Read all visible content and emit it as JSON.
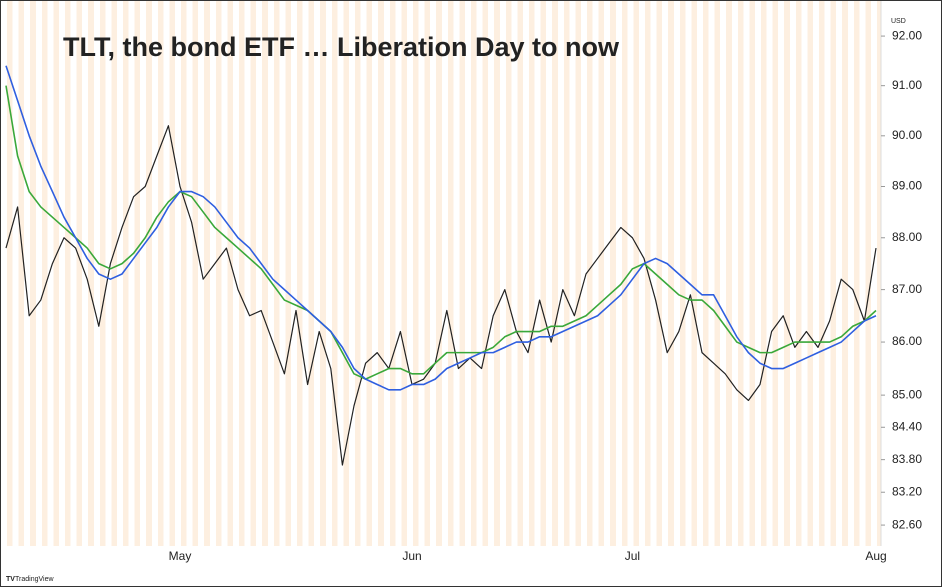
{
  "chart_data": {
    "type": "line",
    "title": "TLT, the bond ETF … Liberation Day to now",
    "currency": "USD",
    "watermark": "TradingView",
    "log_scale": true,
    "grid": false,
    "ylim": [
      82.22,
      92.51
    ],
    "yticks": [
      {
        "value": 92,
        "label": "92.00"
      },
      {
        "value": 91,
        "label": "91.00"
      },
      {
        "value": 90,
        "label": "90.00"
      },
      {
        "value": 89,
        "label": "89.00"
      },
      {
        "value": 88,
        "label": "88.00"
      },
      {
        "value": 87,
        "label": "87.00"
      },
      {
        "value": 86,
        "label": "86.00"
      },
      {
        "value": 85,
        "label": "85.00"
      },
      {
        "value": 84.4,
        "label": "84.40"
      },
      {
        "value": 83.8,
        "label": "83.80"
      },
      {
        "value": 83.2,
        "label": "83.20"
      },
      {
        "value": 82.6,
        "label": "82.60"
      }
    ],
    "categories": [
      null,
      null,
      null,
      null,
      null,
      null,
      null,
      null,
      null,
      null,
      null,
      null,
      null,
      null,
      null,
      "May",
      null,
      null,
      null,
      null,
      null,
      null,
      null,
      null,
      null,
      null,
      null,
      null,
      null,
      null,
      null,
      null,
      null,
      null,
      null,
      "Jun",
      null,
      null,
      null,
      null,
      null,
      null,
      null,
      null,
      null,
      null,
      null,
      null,
      null,
      null,
      null,
      null,
      null,
      null,
      "Jul",
      null,
      null,
      null,
      null,
      null,
      null,
      null,
      null,
      null,
      null,
      null,
      null,
      null,
      null,
      null,
      null,
      null,
      null,
      null,
      null,
      "Aug"
    ],
    "series": [
      {
        "color": "#222222",
        "values": [
          87.8,
          88.6,
          86.5,
          86.8,
          87.5,
          88.0,
          87.8,
          87.2,
          86.3,
          87.5,
          88.2,
          88.8,
          89.0,
          89.6,
          90.2,
          89.0,
          88.3,
          87.2,
          87.5,
          87.8,
          87.0,
          86.5,
          86.6,
          86.0,
          85.4,
          86.6,
          85.2,
          86.2,
          85.5,
          83.7,
          84.8,
          85.6,
          85.8,
          85.5,
          86.2,
          85.2,
          85.3,
          85.6,
          86.6,
          85.5,
          85.7,
          85.5,
          86.5,
          87.0,
          86.2,
          85.8,
          86.8,
          86.0,
          87.0,
          86.5,
          87.3,
          87.6,
          87.9,
          88.2,
          88.0,
          87.6,
          86.8,
          85.8,
          86.2,
          86.9,
          85.8,
          85.6,
          85.4,
          85.1,
          84.9,
          85.2,
          86.2,
          86.5,
          85.9,
          86.2,
          85.9,
          86.4,
          87.2,
          87.0,
          86.4,
          87.8
        ]
      },
      {
        "color": "#3aa83a",
        "values": [
          91.0,
          89.6,
          88.9,
          88.6,
          88.4,
          88.2,
          88.0,
          87.8,
          87.5,
          87.4,
          87.5,
          87.7,
          88.0,
          88.4,
          88.7,
          88.9,
          88.8,
          88.5,
          88.2,
          88.0,
          87.8,
          87.6,
          87.4,
          87.1,
          86.8,
          86.7,
          86.6,
          86.4,
          86.2,
          85.8,
          85.4,
          85.3,
          85.4,
          85.5,
          85.5,
          85.4,
          85.4,
          85.6,
          85.8,
          85.8,
          85.8,
          85.8,
          85.9,
          86.1,
          86.2,
          86.2,
          86.2,
          86.3,
          86.3,
          86.4,
          86.5,
          86.7,
          86.9,
          87.1,
          87.4,
          87.5,
          87.3,
          87.1,
          86.9,
          86.8,
          86.8,
          86.6,
          86.3,
          86.0,
          85.9,
          85.8,
          85.8,
          85.9,
          86.0,
          86.0,
          86.0,
          86.0,
          86.1,
          86.3,
          86.4,
          86.6
        ]
      },
      {
        "color": "#2f5fe0",
        "values": [
          91.4,
          90.7,
          90.0,
          89.4,
          88.9,
          88.4,
          88.0,
          87.6,
          87.3,
          87.2,
          87.3,
          87.6,
          87.9,
          88.2,
          88.6,
          88.9,
          88.9,
          88.8,
          88.6,
          88.3,
          88.0,
          87.8,
          87.5,
          87.2,
          87.0,
          86.8,
          86.6,
          86.4,
          86.2,
          85.9,
          85.5,
          85.3,
          85.2,
          85.1,
          85.1,
          85.2,
          85.2,
          85.3,
          85.5,
          85.6,
          85.7,
          85.8,
          85.8,
          85.9,
          86.0,
          86.0,
          86.1,
          86.1,
          86.2,
          86.3,
          86.4,
          86.5,
          86.7,
          86.9,
          87.2,
          87.5,
          87.6,
          87.5,
          87.3,
          87.1,
          86.9,
          86.9,
          86.5,
          86.1,
          85.8,
          85.6,
          85.5,
          85.5,
          85.6,
          85.7,
          85.8,
          85.9,
          86.0,
          86.2,
          86.4,
          86.5
        ]
      }
    ]
  }
}
